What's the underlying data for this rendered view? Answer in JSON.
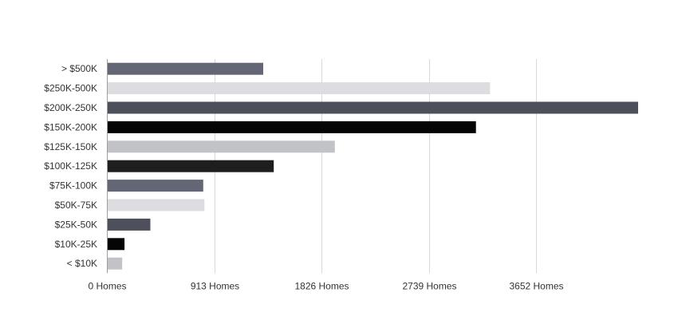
{
  "chart_data": {
    "type": "bar",
    "orientation": "horizontal",
    "categories": [
      "> $500K",
      "$250K-500K",
      "$200K-250K",
      "$150K-200K",
      "$125K-150K",
      "$100K-125K",
      "$75K-100K",
      "$50K-75K",
      "$25K-50K",
      "$10K-25K",
      "< $10K"
    ],
    "values": [
      1330,
      3260,
      4520,
      3140,
      1940,
      1420,
      820,
      830,
      370,
      150,
      130
    ],
    "colors": [
      "#636674",
      "#dcdde0",
      "#4d505b",
      "#050505",
      "#c2c3c7",
      "#1e1e21",
      "#636674",
      "#dcdde0",
      "#4d505b",
      "#050505",
      "#c2c3c7"
    ],
    "x_ticks": [
      0,
      913,
      1826,
      2739,
      3652
    ],
    "x_tick_labels": [
      "0 Homes",
      "913 Homes",
      "1826 Homes",
      "2739 Homes",
      "3652 Homes"
    ],
    "xlim": [
      0,
      4520
    ],
    "grid": true,
    "title": "",
    "xlabel": "",
    "ylabel": ""
  }
}
